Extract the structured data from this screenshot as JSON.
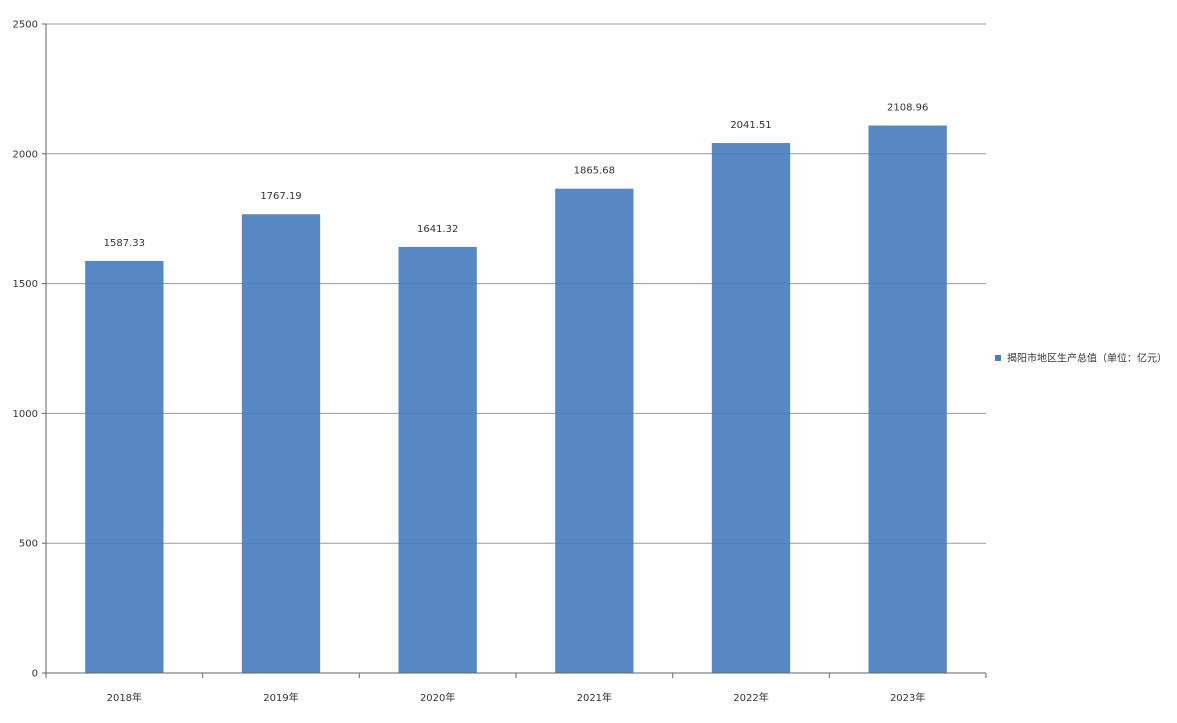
{
  "chart_data": {
    "type": "bar",
    "categories": [
      "2018年",
      "2019年",
      "2020年",
      "2021年",
      "2022年",
      "2023年"
    ],
    "series": [
      {
        "name": "揭阳市地区生产总值（单位：亿元）",
        "values": [
          1587.33,
          1767.19,
          1641.32,
          1865.68,
          2041.51,
          2108.96
        ],
        "data_labels": [
          "1587.33",
          "1767.19",
          "1641.32",
          "1865.68",
          "2041.51",
          "2108.96"
        ]
      }
    ],
    "ylim": [
      0,
      2500
    ],
    "yticks": [
      0,
      500,
      1000,
      1500,
      2000,
      2500
    ],
    "ytick_labels": [
      "0",
      "500",
      "1000",
      "1500",
      "2000",
      "2500"
    ],
    "grid": true,
    "legend_position": "right",
    "colors": {
      "bar": "#4a7ebf",
      "grid": "#999999",
      "axis": "#666666"
    }
  }
}
